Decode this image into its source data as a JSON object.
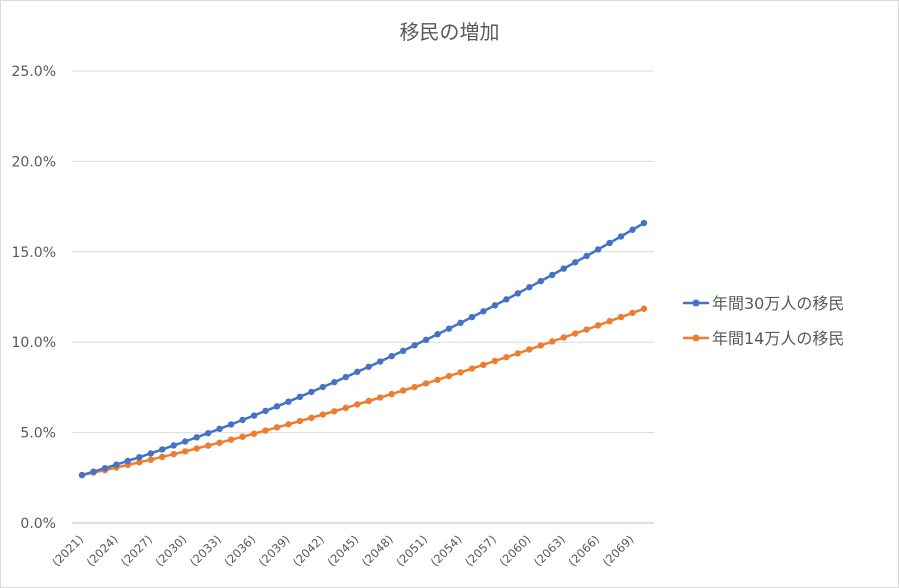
{
  "chart_data": {
    "type": "line",
    "title": "移民の増加",
    "xlabel": "",
    "ylabel": "",
    "ylim": [
      0,
      0.25
    ],
    "y_ticks": [
      "0.0%",
      "5.0%",
      "10.0%",
      "15.0%",
      "20.0%",
      "25.0%"
    ],
    "x_start": 2021,
    "x_end": 2070,
    "x_tick_labels": [
      "(2021)",
      "(2024)",
      "(2027)",
      "(2030)",
      "(2033)",
      "(2036)",
      "(2039)",
      "(2042)",
      "(2045)",
      "(2048)",
      "(2051)",
      "(2054)",
      "(2057)",
      "(2060)",
      "(2063)",
      "(2066)",
      "(2069)"
    ],
    "grid": true,
    "legend": "right",
    "series": [
      {
        "name": "年間30万人の移民",
        "color": "#4472C4",
        "values": [
          0.0265,
          0.0284,
          0.0303,
          0.0323,
          0.0343,
          0.0364,
          0.0385,
          0.0407,
          0.0429,
          0.0451,
          0.0474,
          0.0497,
          0.0521,
          0.0545,
          0.057,
          0.0594,
          0.062,
          0.0645,
          0.0671,
          0.0698,
          0.0725,
          0.0752,
          0.0779,
          0.0807,
          0.0836,
          0.0864,
          0.0893,
          0.0923,
          0.0952,
          0.0983,
          0.1013,
          0.1044,
          0.1075,
          0.1107,
          0.1139,
          0.1171,
          0.1204,
          0.1237,
          0.127,
          0.1304,
          0.1338,
          0.1372,
          0.1407,
          0.1442,
          0.1477,
          0.1513,
          0.1549,
          0.1585,
          0.1622,
          0.1659
        ]
      },
      {
        "name": "年間14万人の移民",
        "color": "#ED7D31",
        "values": [
          0.0265,
          0.0279,
          0.0292,
          0.0307,
          0.0321,
          0.0336,
          0.035,
          0.0366,
          0.0381,
          0.0396,
          0.0412,
          0.0428,
          0.0444,
          0.0461,
          0.0477,
          0.0494,
          0.0511,
          0.0529,
          0.0546,
          0.0564,
          0.0582,
          0.06,
          0.0618,
          0.0637,
          0.0656,
          0.0675,
          0.0694,
          0.0713,
          0.0733,
          0.0752,
          0.0772,
          0.0792,
          0.0813,
          0.0833,
          0.0854,
          0.0875,
          0.0896,
          0.0917,
          0.0938,
          0.096,
          0.0982,
          0.1004,
          0.1026,
          0.1048,
          0.107,
          0.1093,
          0.1116,
          0.1139,
          0.1162,
          0.1185
        ]
      }
    ]
  }
}
